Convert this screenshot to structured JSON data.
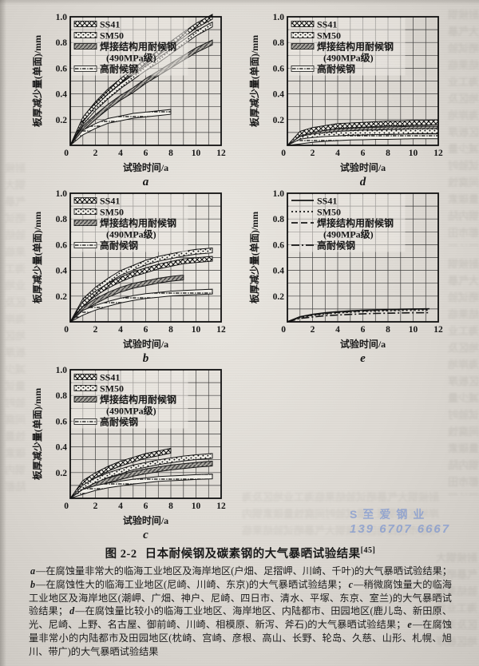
{
  "page": {
    "watermark": {
      "line1": "S至爱钢业",
      "line2": "139 6707 6667",
      "color": "#6e8cd2"
    },
    "bleed_text": "耐候钢大气暴晒试验结果临海工业地区及海岸地区板厚减少量试验时间腐蚀量碳素钢内陆都市田园地区耐候钢大气暴晒试验结果临海工业地区及海岸地区板厚减少量试验时间腐蚀量碳素钢内陆都市田园地区",
    "caption": {
      "figure_label": "图 2-2",
      "title": "日本耐候钢及碳素钢的大气暴晒试验结果",
      "reference": "[45]",
      "notes": [
        {
          "key": "a",
          "text": "—在腐蚀量非常大的临海工业地区及海岸地区(户畑、足摺岬、川崎、千叶)的大气暴晒试验结果；"
        },
        {
          "key": "b",
          "text": "—在腐蚀性大的临海工业地区(尼崎、川崎、东京)的大气暴晒试验结果；"
        },
        {
          "key": "c",
          "text": "—稍微腐蚀量大的临海工业地区及海岸地区(潮岬、广畑、神户、尼崎、四日市、清水、平塚、东京、室兰)的大气暴晒试验结果；"
        },
        {
          "key": "d",
          "text": "—在腐蚀量比较小的临海工业地区、海岸地区、内陆都市、田园地区(鹿儿岛、新田原、光、尼崎、上野、名古屋、御前崎、川崎、相模原、新泻、斧石)的大气暴晒试验结果；"
        },
        {
          "key": "e",
          "text": "—在腐蚀量非常小的内陆都市及田园地区(枕崎、宫崎、彦根、高山、长野、轮岛、久慈、山形、札幌、旭川、带广)的大气暴晒试验结果"
        }
      ]
    }
  },
  "legend_labels": [
    "SS41",
    "SM50",
    "焊接结构用耐候钢",
    "(490MPa级)",
    "高耐候钢"
  ],
  "axes": {
    "xlabel": "试验时间/a",
    "ylabel": "板厚减少量(单面)/mm",
    "xlim": [
      0,
      12
    ],
    "ylim": [
      0,
      1.0
    ],
    "xticks": [
      2,
      4,
      6,
      8,
      10,
      12
    ],
    "yticks": [
      "0.2",
      "0.4",
      "0.6",
      "0.8",
      "1.0"
    ],
    "origin_label": "0",
    "grid": true
  },
  "chart_data": [
    {
      "id": "a",
      "type": "area",
      "label": "a",
      "render": "bands",
      "series": [
        {
          "key": "welded",
          "name": "焊接结构用耐候钢(490MPa级)",
          "texture": "grayhatch",
          "x": [
            0,
            1,
            2,
            3,
            4,
            5,
            6,
            7,
            8,
            9,
            10,
            11.3
          ],
          "y": [
            0,
            0.13,
            0.22,
            0.3,
            0.37,
            0.43,
            0.5,
            0.56,
            0.62,
            0.68,
            0.74,
            0.8
          ]
        },
        {
          "key": "sm50",
          "name": "SM50",
          "texture": "stipple",
          "x": [
            0,
            1,
            2,
            3,
            4,
            5,
            6,
            7,
            8,
            9,
            10,
            11.3
          ],
          "y": [
            0,
            0.18,
            0.29,
            0.38,
            0.46,
            0.53,
            0.6,
            0.66,
            0.73,
            0.8,
            0.87,
            0.94
          ]
        },
        {
          "key": "ss41",
          "name": "SS41",
          "texture": "crosshatch",
          "x": [
            0,
            1,
            2,
            3,
            4,
            5,
            6,
            7,
            8,
            9,
            10,
            11.3
          ],
          "y": [
            0,
            0.2,
            0.32,
            0.42,
            0.5,
            0.58,
            0.65,
            0.72,
            0.79,
            0.86,
            0.93,
            1.0
          ]
        },
        {
          "key": "high",
          "name": "高耐候钢",
          "texture": "sparse",
          "x": [
            0,
            1,
            2,
            3,
            4,
            5,
            6,
            7,
            8
          ],
          "y": [
            0,
            0.1,
            0.15,
            0.19,
            0.21,
            0.23,
            0.24,
            0.25,
            0.26
          ]
        }
      ]
    },
    {
      "id": "b",
      "type": "area",
      "label": "b",
      "render": "bands",
      "series": [
        {
          "key": "sm50",
          "name": "SM50",
          "texture": "stipple",
          "x": [
            0,
            1,
            2,
            3,
            4,
            5,
            6,
            7,
            8,
            9,
            10,
            11.3
          ],
          "y": [
            0,
            0.16,
            0.25,
            0.32,
            0.38,
            0.42,
            0.46,
            0.49,
            0.51,
            0.53,
            0.545,
            0.555
          ]
        },
        {
          "key": "ss41",
          "name": "SS41",
          "texture": "crosshatch",
          "x": [
            0,
            1,
            2,
            3,
            4,
            5,
            6,
            7,
            8,
            9,
            10,
            11.3
          ],
          "y": [
            0,
            0.14,
            0.22,
            0.28,
            0.33,
            0.37,
            0.4,
            0.43,
            0.45,
            0.47,
            0.48,
            0.49
          ]
        },
        {
          "key": "welded",
          "name": "焊接结构用耐候钢(490MPa级)",
          "texture": "grayhatch",
          "x": [
            0,
            1,
            2,
            3,
            4,
            5,
            6,
            7,
            8,
            9
          ],
          "y": [
            0,
            0.1,
            0.16,
            0.21,
            0.25,
            0.28,
            0.3,
            0.32,
            0.335,
            0.345
          ]
        },
        {
          "key": "high",
          "name": "高耐候钢",
          "texture": "sparse",
          "x": [
            0,
            1,
            2,
            3,
            4,
            5,
            6,
            7,
            8,
            9,
            10,
            11.3
          ],
          "y": [
            0,
            0.07,
            0.11,
            0.14,
            0.165,
            0.185,
            0.2,
            0.21,
            0.22,
            0.225,
            0.23,
            0.235
          ]
        }
      ]
    },
    {
      "id": "c",
      "type": "area",
      "label": "c",
      "render": "bands",
      "series": [
        {
          "key": "welded",
          "name": "焊接结构用耐候钢(490MPa级)",
          "texture": "grayhatch",
          "x": [
            0,
            1,
            2,
            3,
            4,
            5,
            6,
            7,
            8,
            9,
            10,
            11.3
          ],
          "y": [
            0,
            0.07,
            0.11,
            0.14,
            0.165,
            0.19,
            0.21,
            0.225,
            0.24,
            0.25,
            0.26,
            0.27
          ]
        },
        {
          "key": "sm50",
          "name": "SM50",
          "texture": "stipple",
          "x": [
            0,
            1,
            2,
            3,
            4,
            5,
            6,
            7,
            8,
            9,
            10,
            11.3
          ],
          "y": [
            0,
            0.09,
            0.14,
            0.18,
            0.21,
            0.24,
            0.26,
            0.28,
            0.295,
            0.31,
            0.32,
            0.33
          ]
        },
        {
          "key": "ss41",
          "name": "SS41",
          "texture": "crosshatch",
          "x": [
            0,
            1,
            2,
            3,
            4,
            5,
            6,
            7,
            8
          ],
          "y": [
            0,
            0.12,
            0.18,
            0.23,
            0.27,
            0.3,
            0.33,
            0.35,
            0.37
          ]
        },
        {
          "key": "high",
          "name": "高耐候钢",
          "texture": "sparse",
          "x": [
            0,
            1,
            2,
            3,
            4,
            5,
            6,
            7,
            8,
            9,
            10,
            11.3
          ],
          "y": [
            0,
            0.05,
            0.08,
            0.1,
            0.115,
            0.13,
            0.14,
            0.15,
            0.155,
            0.16,
            0.165,
            0.17
          ]
        }
      ]
    },
    {
      "id": "d",
      "type": "area",
      "label": "d",
      "render": "bands",
      "series": [
        {
          "key": "welded",
          "name": "焊接结构用耐候钢(490MPa级)",
          "texture": "grayhatch",
          "x": [
            0,
            1,
            2,
            3,
            4,
            5,
            6,
            7,
            8,
            9,
            10,
            11,
            12
          ],
          "y": [
            0,
            0.06,
            0.085,
            0.1,
            0.11,
            0.115,
            0.12,
            0.122,
            0.125,
            0.127,
            0.13,
            0.13,
            0.13
          ]
        },
        {
          "key": "sm50",
          "name": "SM50",
          "texture": "stipple",
          "x": [
            0,
            1,
            2,
            3,
            4,
            5,
            6,
            7,
            8,
            9,
            10,
            11,
            12
          ],
          "y": [
            0,
            0.05,
            0.07,
            0.08,
            0.09,
            0.095,
            0.1,
            0.1,
            0.105,
            0.105,
            0.11,
            0.11,
            0.11
          ]
        },
        {
          "key": "ss41",
          "name": "SS41",
          "texture": "crosshatch",
          "x": [
            0,
            1,
            2,
            3,
            4,
            5,
            6,
            7,
            8,
            9,
            10,
            11,
            12
          ],
          "y": [
            0,
            0.09,
            0.12,
            0.135,
            0.15,
            0.155,
            0.16,
            0.165,
            0.17,
            0.17,
            0.175,
            0.175,
            0.18
          ]
        },
        {
          "key": "high",
          "name": "高耐候钢",
          "texture": "sparse",
          "x": [
            0,
            1,
            2,
            3,
            4,
            5,
            6,
            7,
            8,
            9,
            10,
            11,
            12
          ],
          "y": [
            0,
            0.03,
            0.042,
            0.05,
            0.055,
            0.06,
            0.062,
            0.065,
            0.065,
            0.068,
            0.07,
            0.07,
            0.07
          ]
        }
      ]
    },
    {
      "id": "e",
      "type": "line",
      "label": "e",
      "render": "lines",
      "series": [
        {
          "key": "ss41",
          "name": "SS41",
          "line": "solid",
          "x": [
            0,
            1,
            2,
            3,
            4,
            5,
            6,
            7,
            8,
            9,
            10,
            11.3
          ],
          "y": [
            0,
            0.04,
            0.058,
            0.07,
            0.079,
            0.085,
            0.09,
            0.093,
            0.096,
            0.098,
            0.1,
            0.101
          ]
        },
        {
          "key": "sm50",
          "name": "SM50",
          "line": "dotted",
          "x": [
            0,
            1,
            2,
            3,
            4,
            5,
            6,
            7,
            8,
            9,
            10,
            11.3
          ],
          "y": [
            0,
            0.034,
            0.05,
            0.061,
            0.069,
            0.075,
            0.08,
            0.083,
            0.086,
            0.088,
            0.09,
            0.091
          ]
        },
        {
          "key": "welded",
          "name": "焊接结构用耐候钢(490MPa级)",
          "line": "dashed",
          "x": [
            0,
            1,
            2,
            3,
            4,
            5,
            6,
            7,
            8,
            9,
            10,
            11.3
          ],
          "y": [
            0,
            0.037,
            0.054,
            0.066,
            0.074,
            0.081,
            0.086,
            0.09,
            0.093,
            0.096,
            0.098,
            0.1
          ]
        },
        {
          "key": "high",
          "name": "高耐候钢",
          "line": "dashdot",
          "x": [
            0,
            1,
            2,
            3,
            4,
            5,
            6,
            7,
            8,
            9,
            10,
            11.3
          ],
          "y": [
            0,
            0.026,
            0.038,
            0.047,
            0.053,
            0.058,
            0.062,
            0.065,
            0.067,
            0.069,
            0.07,
            0.071
          ]
        }
      ]
    }
  ]
}
